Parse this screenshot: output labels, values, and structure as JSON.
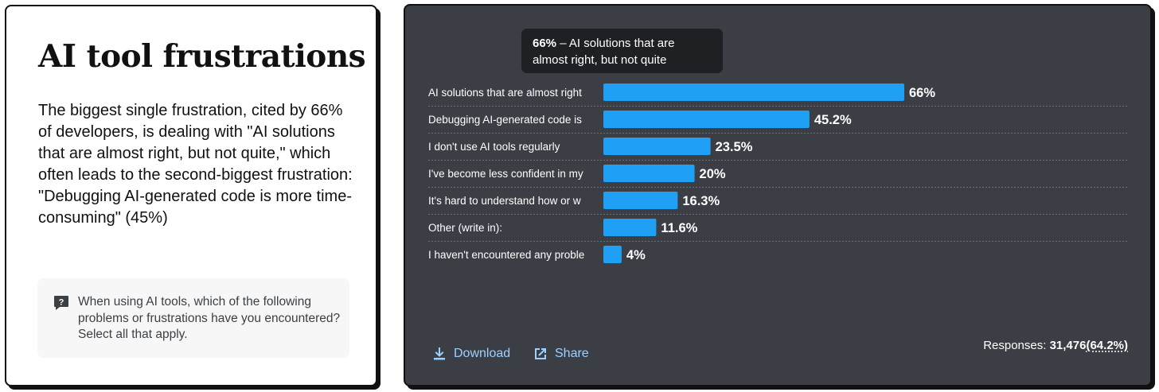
{
  "left": {
    "title": "AI tool frustrations",
    "description": "The biggest single frustration, cited by 66% of developers, is dealing with \"AI solutions that are almost right, but not quite,\" which often leads to the second-biggest frustration: \"Debugging AI-generated code is more time-consuming\" (45%)",
    "question_icon": "question-icon",
    "question": "When using AI tools, which of the following problems or frustrations have you encountered? Select all that apply."
  },
  "tooltip": {
    "value": "66%",
    "text": " – AI solutions that are almost right, but not quite"
  },
  "footer": {
    "download_label": "Download",
    "download_icon": "download-icon",
    "share_label": "Share",
    "share_icon": "share-icon",
    "responses_label": "Responses: ",
    "responses_count": "31,476",
    "responses_pct": "(64.2%)"
  },
  "colors": {
    "bar": "#1fa0f5",
    "chart_bg": "#3b3e44",
    "link": "#9cd0ff"
  },
  "chart_data": {
    "type": "bar",
    "orientation": "horizontal",
    "categories": [
      "AI solutions that are almost right",
      "Debugging AI-generated code is",
      "I don't use AI tools regularly",
      "I've become less confident in my",
      "It's hard to understand how or w",
      "Other (write in):",
      "I haven't encountered any proble"
    ],
    "values": [
      66,
      45.2,
      23.5,
      20,
      16.3,
      11.6,
      4
    ],
    "value_labels": [
      "66%",
      "45.2%",
      "23.5%",
      "20%",
      "16.3%",
      "11.6%",
      "4%"
    ],
    "unit": "%",
    "xlim": [
      0,
      100
    ],
    "title": "",
    "xlabel": "",
    "ylabel": "",
    "grid": "dotted row separators"
  }
}
